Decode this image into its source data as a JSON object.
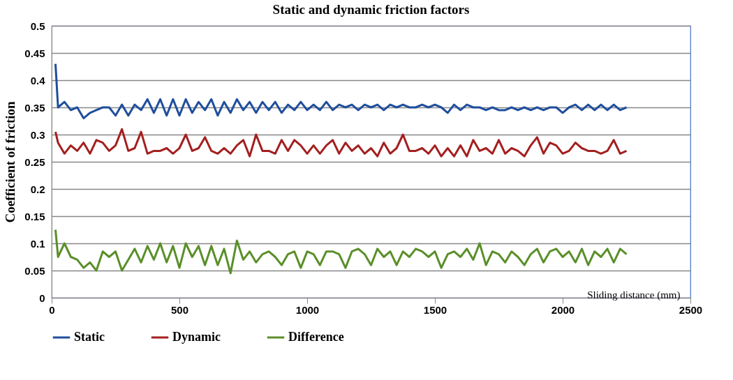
{
  "chart_data": {
    "type": "line",
    "title": "Static and dynamic friction factors",
    "xlabel": "Sliding distance (mm)",
    "ylabel": "Coefficient of friction",
    "x": [
      15,
      25,
      50,
      75,
      100,
      125,
      150,
      175,
      200,
      225,
      250,
      275,
      300,
      325,
      350,
      375,
      400,
      425,
      450,
      475,
      500,
      525,
      550,
      575,
      600,
      625,
      650,
      675,
      700,
      725,
      750,
      775,
      800,
      825,
      850,
      875,
      900,
      925,
      950,
      975,
      1000,
      1025,
      1050,
      1075,
      1100,
      1125,
      1150,
      1175,
      1200,
      1225,
      1250,
      1275,
      1300,
      1325,
      1350,
      1375,
      1400,
      1425,
      1450,
      1475,
      1500,
      1525,
      1550,
      1575,
      1600,
      1625,
      1650,
      1675,
      1700,
      1725,
      1750,
      1775,
      1800,
      1825,
      1850,
      1875,
      1900,
      1925,
      1950,
      1975,
      2000,
      2025,
      2050,
      2075,
      2100,
      2125,
      2150,
      2175,
      2200,
      2225,
      2250
    ],
    "series": [
      {
        "name": "Static",
        "color": "#1f4e9c",
        "values": [
          0.43,
          0.35,
          0.36,
          0.345,
          0.35,
          0.33,
          0.34,
          0.345,
          0.35,
          0.35,
          0.335,
          0.355,
          0.335,
          0.355,
          0.345,
          0.365,
          0.34,
          0.365,
          0.335,
          0.365,
          0.335,
          0.365,
          0.34,
          0.36,
          0.345,
          0.365,
          0.335,
          0.36,
          0.34,
          0.365,
          0.345,
          0.36,
          0.34,
          0.36,
          0.345,
          0.36,
          0.34,
          0.355,
          0.345,
          0.36,
          0.345,
          0.355,
          0.345,
          0.36,
          0.345,
          0.355,
          0.35,
          0.355,
          0.345,
          0.355,
          0.35,
          0.355,
          0.345,
          0.355,
          0.35,
          0.355,
          0.35,
          0.35,
          0.355,
          0.35,
          0.355,
          0.35,
          0.34,
          0.355,
          0.345,
          0.355,
          0.35,
          0.35,
          0.345,
          0.35,
          0.345,
          0.345,
          0.35,
          0.345,
          0.35,
          0.345,
          0.35,
          0.345,
          0.35,
          0.35,
          0.34,
          0.35,
          0.355,
          0.345,
          0.355,
          0.345,
          0.355,
          0.345,
          0.355,
          0.345,
          0.35
        ]
      },
      {
        "name": "Dynamic",
        "color": "#a31f1f",
        "values": [
          0.305,
          0.285,
          0.265,
          0.28,
          0.27,
          0.285,
          0.265,
          0.29,
          0.285,
          0.27,
          0.28,
          0.31,
          0.27,
          0.275,
          0.305,
          0.265,
          0.27,
          0.27,
          0.275,
          0.265,
          0.275,
          0.3,
          0.27,
          0.275,
          0.295,
          0.27,
          0.265,
          0.275,
          0.265,
          0.28,
          0.29,
          0.26,
          0.3,
          0.27,
          0.27,
          0.265,
          0.29,
          0.27,
          0.29,
          0.28,
          0.265,
          0.28,
          0.265,
          0.28,
          0.29,
          0.265,
          0.285,
          0.27,
          0.28,
          0.265,
          0.275,
          0.26,
          0.285,
          0.265,
          0.275,
          0.3,
          0.27,
          0.27,
          0.275,
          0.265,
          0.28,
          0.26,
          0.275,
          0.26,
          0.28,
          0.26,
          0.29,
          0.27,
          0.275,
          0.265,
          0.29,
          0.265,
          0.275,
          0.27,
          0.26,
          0.28,
          0.295,
          0.265,
          0.285,
          0.28,
          0.265,
          0.27,
          0.285,
          0.275,
          0.27,
          0.27,
          0.265,
          0.27,
          0.29,
          0.265,
          0.27
        ]
      },
      {
        "name": "Difference",
        "color": "#5a8f29",
        "values": [
          0.125,
          0.075,
          0.1,
          0.075,
          0.07,
          0.055,
          0.065,
          0.05,
          0.085,
          0.075,
          0.085,
          0.05,
          0.07,
          0.09,
          0.065,
          0.095,
          0.07,
          0.1,
          0.065,
          0.095,
          0.055,
          0.1,
          0.075,
          0.095,
          0.06,
          0.095,
          0.06,
          0.09,
          0.045,
          0.105,
          0.07,
          0.085,
          0.065,
          0.08,
          0.085,
          0.075,
          0.06,
          0.08,
          0.085,
          0.055,
          0.085,
          0.08,
          0.06,
          0.085,
          0.085,
          0.08,
          0.055,
          0.085,
          0.09,
          0.08,
          0.06,
          0.09,
          0.075,
          0.085,
          0.06,
          0.085,
          0.075,
          0.09,
          0.085,
          0.075,
          0.085,
          0.055,
          0.08,
          0.085,
          0.075,
          0.09,
          0.07,
          0.1,
          0.06,
          0.085,
          0.08,
          0.065,
          0.085,
          0.075,
          0.06,
          0.08,
          0.09,
          0.065,
          0.085,
          0.09,
          0.075,
          0.085,
          0.065,
          0.09,
          0.06,
          0.085,
          0.075,
          0.09,
          0.065,
          0.09,
          0.08
        ]
      }
    ],
    "xlim": [
      0,
      2500
    ],
    "xticks": [
      0,
      500,
      1000,
      1500,
      2000,
      2500
    ],
    "ylim": [
      0,
      0.5
    ],
    "yticks": [
      0,
      0.05,
      0.1,
      0.15,
      0.2,
      0.25,
      0.3,
      0.35,
      0.4,
      0.45,
      0.5
    ],
    "grid": "y",
    "legend": "bottom",
    "marker": "none",
    "line_style": "solid"
  }
}
